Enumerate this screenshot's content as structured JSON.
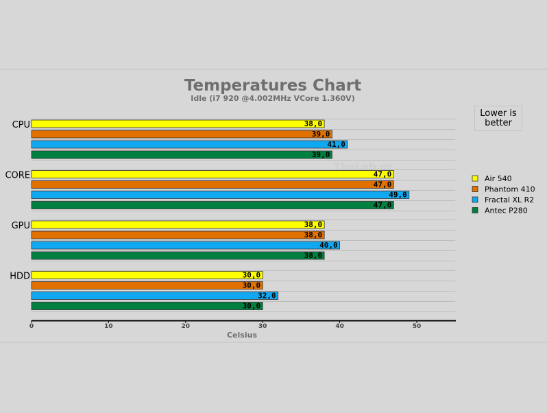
{
  "chart_data": {
    "type": "bar",
    "orientation": "horizontal",
    "title": "Temperatures Chart",
    "subtitle": "Idle (i7 920 @4.002MHz VCore 1.360V)",
    "xlabel": "Celsius",
    "ylabel": "",
    "xlim": [
      0,
      55
    ],
    "xticks": [
      0,
      10,
      20,
      30,
      40,
      50
    ],
    "categories": [
      "CPU",
      "CORE",
      "GPU",
      "HDD"
    ],
    "series": [
      {
        "name": "Air 540",
        "color": "#ffff00",
        "values": [
          38.0,
          47.0,
          38.0,
          30.0
        ],
        "labels": [
          "38,0",
          "47,0",
          "38,0",
          "30,0"
        ]
      },
      {
        "name": "Phantom 410",
        "color": "#e07000",
        "values": [
          39.0,
          47.0,
          38.0,
          30.0
        ],
        "labels": [
          "39,0",
          "47,0",
          "38,0",
          "30,0"
        ]
      },
      {
        "name": "Fractal XL R2",
        "color": "#10a8f0",
        "values": [
          41.0,
          49.0,
          40.0,
          32.0
        ],
        "labels": [
          "41,0",
          "49,0",
          "40,0",
          "32,0"
        ]
      },
      {
        "name": "Antec P280",
        "color": "#008040",
        "values": [
          39.0,
          47.0,
          38.0,
          30.0
        ],
        "labels": [
          "39,0",
          "47,0",
          "38,0",
          "30,0"
        ]
      }
    ],
    "legend_position": "right",
    "grid": true,
    "note": "Lower is better",
    "watermark": "TheLab.gr"
  }
}
